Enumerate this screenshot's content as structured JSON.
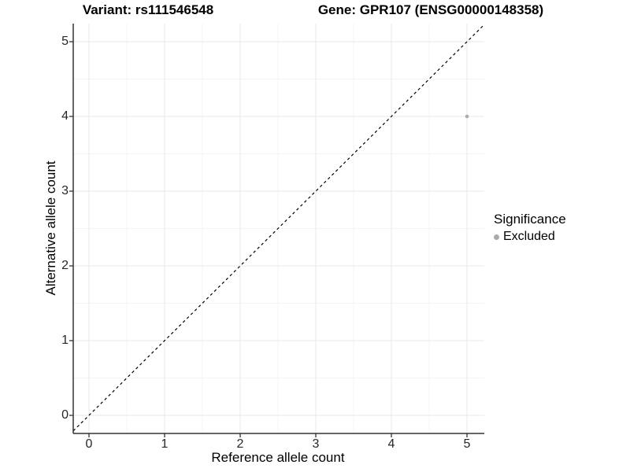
{
  "chart_data": {
    "type": "scatter",
    "title_left": "Variant: rs111546548",
    "title_right": "Gene: GPR107 (ENSG00000148358)",
    "xlabel": "Reference allele count",
    "ylabel": "Alternative allele count",
    "xticks": [
      0,
      1,
      2,
      3,
      4,
      5
    ],
    "yticks": [
      0,
      1,
      2,
      3,
      4,
      5
    ],
    "xlim": [
      -0.21,
      5.23
    ],
    "ylim": [
      -0.24,
      5.24
    ],
    "grid": "major gridlines at integers, minor gridlines at 0.5 steps",
    "reference_line": {
      "type": "identity y=x",
      "style": "dashed",
      "color": "#000000"
    },
    "series": [
      {
        "name": "Excluded",
        "color": "#aaaaaa",
        "points": [
          {
            "x": 5,
            "y": 4
          }
        ]
      }
    ],
    "legend": {
      "title": "Significance",
      "position": "right",
      "items": [
        {
          "label": "Excluded",
          "color": "#aaaaaa"
        }
      ]
    }
  },
  "colors": {
    "background": "#ffffff",
    "grid_major": "#e9e9e9",
    "grid_minor": "#f4f4f4",
    "axis_line": "#333333",
    "tick_mark": "#333333",
    "tick_text": "#262626",
    "point": "#aaaaaa",
    "reference_line": "#000000"
  }
}
